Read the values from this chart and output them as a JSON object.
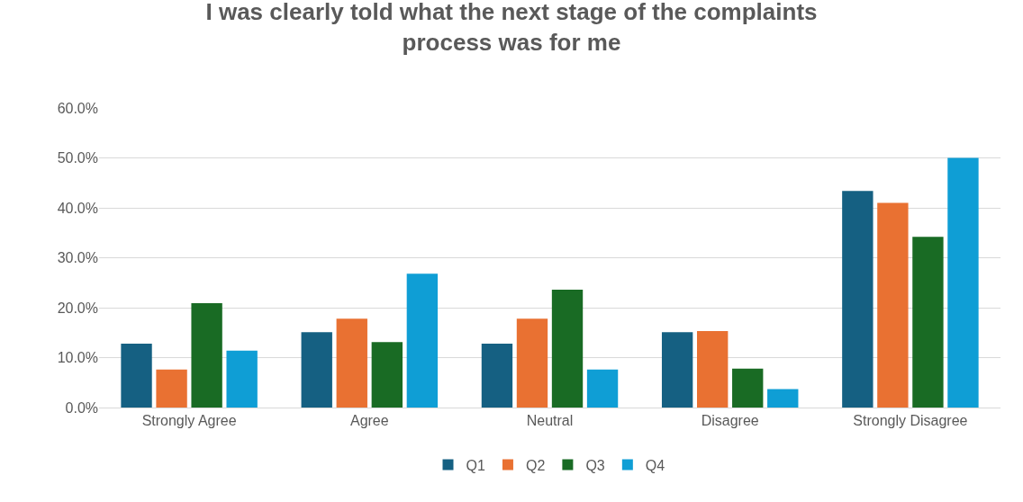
{
  "chart_data": {
    "type": "bar",
    "title": "I was clearly told what the next stage of the complaints process was for me",
    "categories": [
      "Strongly Agree",
      "Agree",
      "Neutral",
      "Disagree",
      "Strongly Disagree"
    ],
    "series": [
      {
        "name": "Q1",
        "color": "#156082",
        "values": [
          12.8,
          15.1,
          12.8,
          15.1,
          43.4
        ]
      },
      {
        "name": "Q2",
        "color": "#e97132",
        "values": [
          7.6,
          17.8,
          17.8,
          15.3,
          41.0
        ]
      },
      {
        "name": "Q3",
        "color": "#196b24",
        "values": [
          20.9,
          13.1,
          23.6,
          7.8,
          34.2
        ]
      },
      {
        "name": "Q4",
        "color": "#0f9ed5",
        "values": [
          11.4,
          26.8,
          7.6,
          3.7,
          50.0
        ]
      }
    ],
    "ylim": [
      0,
      60
    ],
    "yticks": [
      {
        "value": 0,
        "label": "0.0%"
      },
      {
        "value": 10,
        "label": "10.0%"
      },
      {
        "value": 20,
        "label": "20.0%"
      },
      {
        "value": 30,
        "label": "30.0%"
      },
      {
        "value": 40,
        "label": "40.0%"
      },
      {
        "value": 50,
        "label": "50.0%"
      },
      {
        "value": 60,
        "label": "60.0%"
      }
    ],
    "grid": "y",
    "legend": "bottom"
  }
}
